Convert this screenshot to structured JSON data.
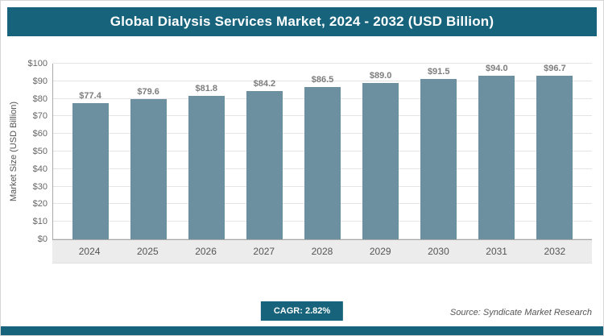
{
  "header": {
    "title": "Global Dialysis Services Market, 2024 - 2032 (USD Billion)"
  },
  "chart_data": {
    "type": "bar",
    "title": "Global Dialysis Services Market, 2024 - 2032 (USD Billion)",
    "categories": [
      "2024",
      "2025",
      "2026",
      "2027",
      "2028",
      "2029",
      "2030",
      "2031",
      "2032"
    ],
    "values": [
      77.4,
      79.6,
      81.8,
      84.2,
      86.5,
      89.0,
      91.5,
      94.0,
      96.7
    ],
    "value_labels": [
      "$77.4",
      "$79.6",
      "$81.8",
      "$84.2",
      "$86.5",
      "$89.0",
      "$91.5",
      "$94.0",
      "$96.7"
    ],
    "xlabel": "",
    "ylabel": "Market Size (USD Billion)",
    "ylim": [
      0,
      100
    ],
    "yticks": [
      0,
      10,
      20,
      30,
      40,
      50,
      60,
      70,
      80,
      90,
      100
    ],
    "ytick_labels": [
      "$0",
      "$10",
      "$20",
      "$30",
      "$40",
      "$50",
      "$60",
      "$70",
      "$80",
      "$90",
      "$100"
    ],
    "grid": true,
    "legend": "none",
    "bar_color": "#6d90a1"
  },
  "footer": {
    "cagr_label": "CAGR: 2.82%",
    "source": "Source: Syndicate Market Research"
  },
  "colors": {
    "accent": "#17637b",
    "bar": "#6d90a1",
    "gridline": "#e4e4e4"
  }
}
